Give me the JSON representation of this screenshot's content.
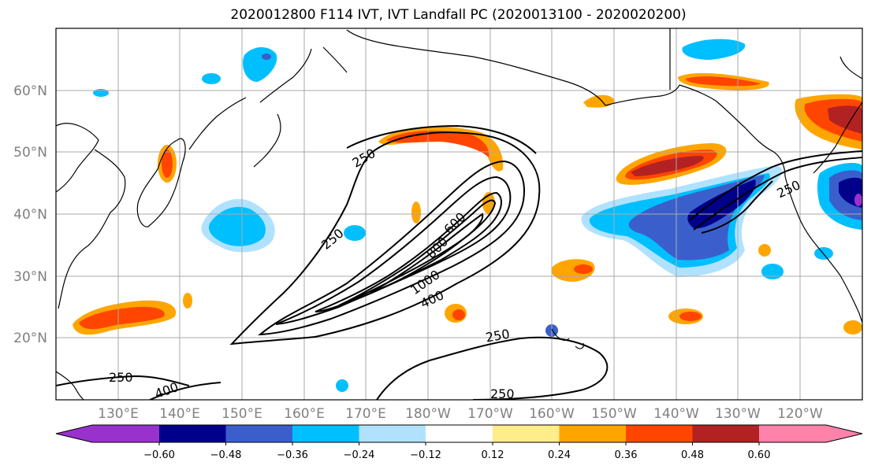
{
  "title": "2020012800 F114 IVT, IVT Landfall PC (2020013100 - 2020020200)",
  "lat_labels": [
    "60°N",
    "50°N",
    "40°N",
    "30°N",
    "20°N"
  ],
  "lon_labels": [
    "130°E",
    "140°E",
    "150°E",
    "160°E",
    "170°E",
    "180°W",
    "170°W",
    "160°W",
    "150°W",
    "140°W",
    "130°W",
    "120°W"
  ],
  "contour_labels": [
    "250",
    "250",
    "250",
    "250",
    "250",
    "250",
    "400",
    "400",
    "600",
    "800",
    "1000",
    "250"
  ],
  "colorbar": {
    "ticks": [
      "−0.60",
      "−0.48",
      "−0.36",
      "−0.24",
      "−0.12",
      "0.12",
      "0.24",
      "0.36",
      "0.48",
      "0.60"
    ],
    "colors": [
      "#9932cc",
      "#00008b",
      "#3a5fcd",
      "#00bfff",
      "#b0e2ff",
      "#ffffff",
      "#ffec8b",
      "#ffa500",
      "#ff4500",
      "#b22222",
      "#ff82ab"
    ]
  },
  "colors": {
    "ivt_contour": "#000000",
    "grid": "#a9a9a9",
    "coast": "#000000"
  }
}
